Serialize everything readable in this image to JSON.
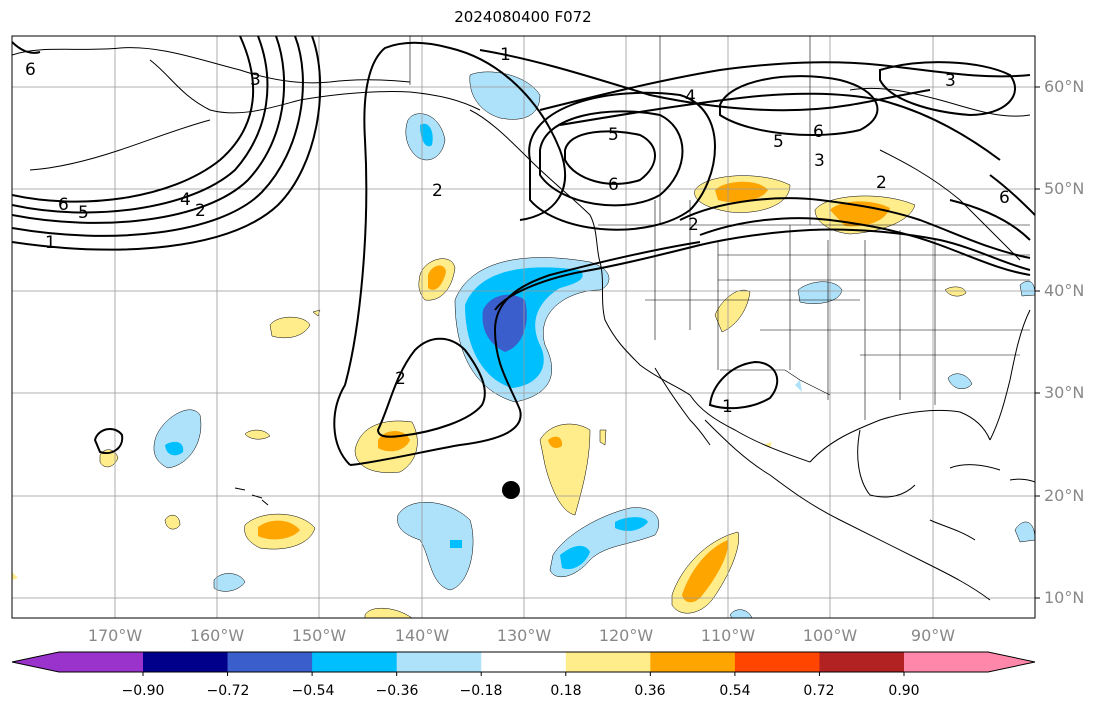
{
  "title": "2024080400 F072",
  "lat_labels": [
    "60°N",
    "50°N",
    "40°N",
    "30°N",
    "20°N",
    "10°N"
  ],
  "lon_labels": [
    "170°W",
    "160°W",
    "150°W",
    "140°W",
    "130°W",
    "120°W",
    "110°W",
    "100°W",
    "90°W"
  ],
  "colorbar": {
    "tick_labels": [
      "−0.90",
      "−0.72",
      "−0.54",
      "−0.36",
      "−0.18",
      "0.18",
      "0.36",
      "0.54",
      "0.72",
      "0.90"
    ],
    "colors": [
      "#9933cc",
      "#00008b",
      "#3a5fcd",
      "#00bfff",
      "#aee2fa",
      "#ffffff",
      "#ffec8b",
      "#ffa500",
      "#ff4500",
      "#b22222",
      "#ff88aa"
    ]
  },
  "contour_labels": [
    "1",
    "2",
    "3",
    "4",
    "5",
    "6"
  ],
  "map": {
    "projection": "cylindrical",
    "lon_range": [
      -180,
      -80
    ],
    "lat_range": [
      8,
      65
    ],
    "grid": true,
    "marker": {
      "name": "black-dot",
      "lon": -131.5,
      "lat": 20.5
    }
  }
}
